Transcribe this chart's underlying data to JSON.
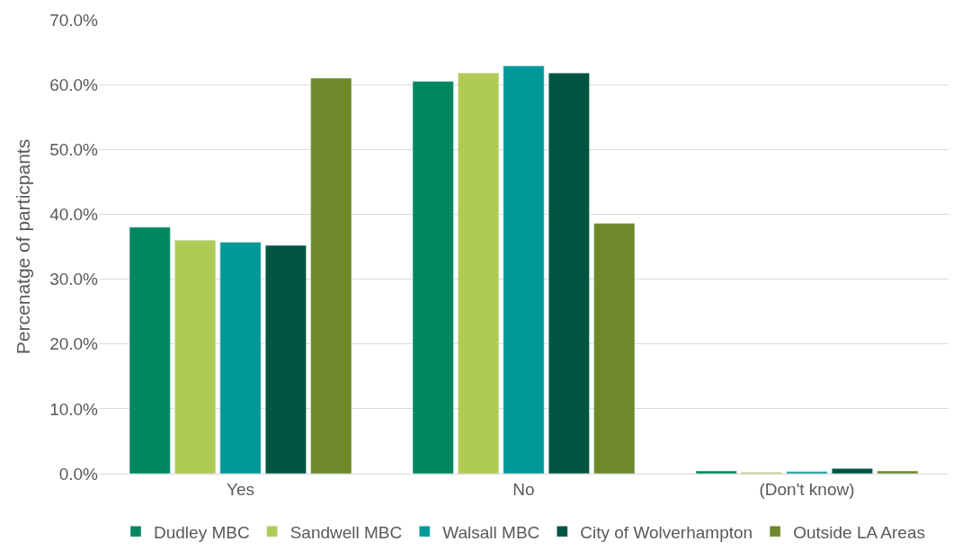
{
  "chart_data": {
    "type": "bar",
    "ylabel": "Percenatge of particpants",
    "categories": [
      "Yes",
      "No",
      "(Don't know)"
    ],
    "series": [
      {
        "name": "Dudley MBC",
        "color": "#00875f",
        "values": [
          38.0,
          60.5,
          0.4
        ]
      },
      {
        "name": "Sandwell MBC",
        "color": "#b0cb55",
        "values": [
          36.0,
          61.8,
          0.2
        ]
      },
      {
        "name": "Walsall MBC",
        "color": "#00999a",
        "values": [
          35.7,
          62.9,
          0.3
        ]
      },
      {
        "name": "City of Wolverhampton",
        "color": "#005541",
        "values": [
          35.2,
          61.8,
          0.8
        ]
      },
      {
        "name": "Outside LA Areas",
        "color": "#6e882a",
        "values": [
          61.0,
          38.6,
          0.4
        ]
      }
    ],
    "ylim": [
      0,
      70
    ],
    "yticks": [
      {
        "value": 0,
        "label": "0.0%"
      },
      {
        "value": 10,
        "label": "10.0%"
      },
      {
        "value": 20,
        "label": "20.0%"
      },
      {
        "value": 30,
        "label": "30.0%"
      },
      {
        "value": 40,
        "label": "40.0%"
      },
      {
        "value": 50,
        "label": "50.0%"
      },
      {
        "value": 60,
        "label": "60.0%"
      },
      {
        "value": 70,
        "label": "70.0%"
      }
    ],
    "grid": "y",
    "legend": "bottom"
  }
}
